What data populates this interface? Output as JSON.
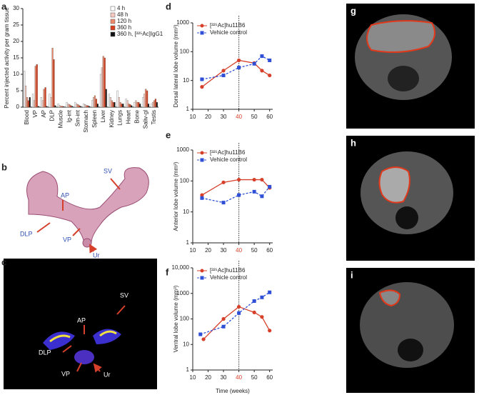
{
  "chart_data": [
    {
      "panel": "a",
      "type": "bar",
      "ylabel": "Percent injected activity per gram tissue",
      "categories": [
        "Blood",
        "VP",
        "AP",
        "DLP",
        "Muscle",
        "lg-int",
        "Sm-int",
        "Stomach",
        "Spleen",
        "Liver",
        "Kidney",
        "Lungs",
        "Heart",
        "Bone",
        "Saliv-gl",
        "Testis"
      ],
      "series": [
        {
          "name": "4 h",
          "color": "#ffffff",
          "values": [
            11,
            4,
            3,
            4,
            1,
            1.5,
            1.5,
            1,
            2,
            10,
            4,
            5,
            2.5,
            1.5,
            3,
            1
          ]
        },
        {
          "name": "48 h",
          "color": "#f6c9c0",
          "values": [
            6.5,
            2,
            2,
            3,
            0.5,
            1,
            1,
            0.8,
            3,
            12,
            3,
            3,
            2,
            2,
            4,
            1.5
          ]
        },
        {
          "name": "120 h",
          "color": "#ee8a6a",
          "values": [
            3,
            12.5,
            5.5,
            18,
            0.3,
            0.8,
            0.8,
            0.5,
            3.5,
            15.5,
            2,
            1.5,
            1,
            1.5,
            5.5,
            2
          ]
        },
        {
          "name": "360 h",
          "color": "#d8401f",
          "values": [
            2,
            13,
            6,
            14.5,
            0.3,
            0.5,
            0.5,
            0.5,
            2.5,
            15,
            1.5,
            1,
            0.8,
            1.5,
            5,
            2.5
          ]
        },
        {
          "name": "360 h, [²²⁵Ac]IgG1",
          "color": "#111111",
          "values": [
            3,
            0.3,
            0.3,
            0.5,
            0.2,
            0.3,
            0.3,
            0.3,
            1,
            5.5,
            1.5,
            1,
            0.5,
            1,
            1,
            1.5
          ]
        }
      ],
      "ylim": [
        0,
        30
      ],
      "yticks": [
        0,
        5,
        10,
        15,
        20,
        25,
        30
      ]
    },
    {
      "panel": "d",
      "type": "line",
      "ylabel": "Dorsal lateral lobe volume (mm³)",
      "log_y": true,
      "xlim": [
        10,
        62
      ],
      "xticks": [
        10,
        20,
        30,
        40,
        50,
        60
      ],
      "ylim": [
        1,
        1000
      ],
      "yticks": [
        1,
        10,
        100,
        1000
      ],
      "vline": 40,
      "vline_label_color": "#d6402b",
      "series": [
        {
          "name": "[²²⁵Ac]hu11B6",
          "color": "#d6402b",
          "line_style": "solid",
          "marker": "circle",
          "x": [
            16,
            30,
            40,
            50,
            55,
            60
          ],
          "values": [
            6,
            22,
            50,
            40,
            22,
            15
          ]
        },
        {
          "name": "Vehicle control",
          "color": "#2e4fd6",
          "line_style": "dashed",
          "marker": "square",
          "x": [
            16,
            30,
            40,
            50,
            55,
            60
          ],
          "values": [
            11,
            15,
            28,
            38,
            70,
            50
          ]
        }
      ]
    },
    {
      "panel": "e",
      "type": "line",
      "ylabel": "Anterior lobe volume (mm³)",
      "log_y": true,
      "xlim": [
        10,
        62
      ],
      "xticks": [
        10,
        20,
        30,
        40,
        50,
        60
      ],
      "ylim": [
        1,
        1000
      ],
      "yticks": [
        1,
        10,
        100,
        1000
      ],
      "vline": 40,
      "vline_label_color": "#d6402b",
      "series": [
        {
          "name": "[²²⁵Ac]hu11B6",
          "color": "#d6402b",
          "line_style": "solid",
          "marker": "circle",
          "x": [
            16,
            30,
            40,
            50,
            55,
            60
          ],
          "values": [
            35,
            90,
            110,
            110,
            110,
            60
          ]
        },
        {
          "name": "Vehicle control",
          "color": "#2e4fd6",
          "line_style": "dashed",
          "marker": "square",
          "x": [
            16,
            30,
            40,
            50,
            55,
            60
          ],
          "values": [
            28,
            20,
            35,
            45,
            32,
            65
          ]
        }
      ]
    },
    {
      "panel": "f",
      "type": "line",
      "ylabel": "Ventral lobe volume (mm³)",
      "xlabel": "Time (weeks)",
      "log_y": true,
      "xlim": [
        10,
        62
      ],
      "xticks": [
        10,
        20,
        30,
        40,
        50,
        60
      ],
      "ylim": [
        1,
        10000
      ],
      "yticks": [
        1,
        10,
        100,
        1000,
        {
          "value": 10000,
          "label": "10,000"
        }
      ],
      "vline": 40,
      "vline_label_color": "#d6402b",
      "series": [
        {
          "name": "[²²⁵Ac]hu11B6",
          "color": "#d6402b",
          "line_style": "solid",
          "marker": "circle",
          "x": [
            17,
            30,
            40,
            50,
            55,
            60
          ],
          "values": [
            16,
            100,
            300,
            180,
            120,
            35
          ]
        },
        {
          "name": "Vehicle control",
          "color": "#2e4fd6",
          "line_style": "dashed",
          "marker": "square",
          "x": [
            15,
            30,
            40,
            50,
            55,
            60
          ],
          "values": [
            25,
            50,
            170,
            500,
            700,
            1100
          ]
        }
      ]
    }
  ],
  "images": [
    {
      "panel": "b",
      "labels": [
        "SV",
        "AP",
        "DLP",
        "VP",
        "Ur"
      ]
    },
    {
      "panel": "c",
      "labels": [
        "SV",
        "AP",
        "DLP",
        "VP",
        "Ur"
      ]
    },
    {
      "panel": "g"
    },
    {
      "panel": "h"
    },
    {
      "panel": "i"
    }
  ]
}
